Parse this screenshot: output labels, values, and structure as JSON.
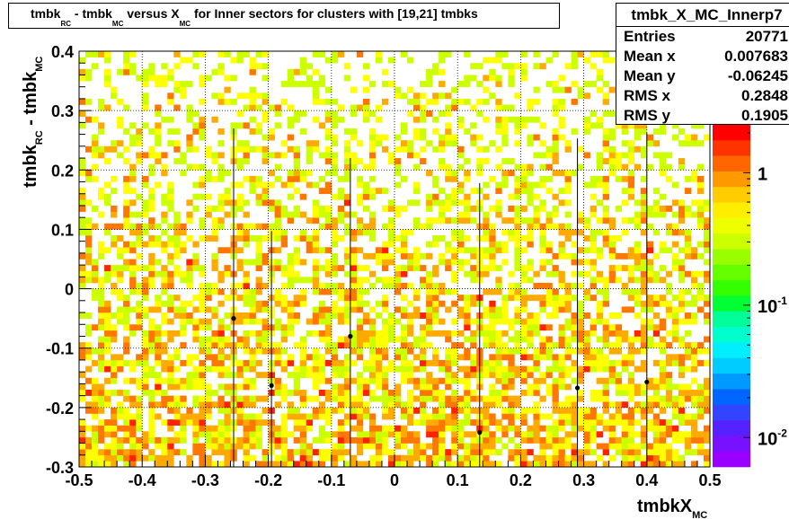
{
  "title": {
    "parts": [
      "tmbk",
      "RC",
      " - tmbk",
      "MC",
      " versus X",
      "MC",
      " for Inner sectors for clusters with [19,21] tmbks"
    ]
  },
  "stats": {
    "name": "tmbk_X_MC_Innerp7",
    "rows": [
      {
        "label": "Entries",
        "value": "20771"
      },
      {
        "label": "Mean x",
        "value": "0.007683"
      },
      {
        "label": "Mean y",
        "value": "-0.06245"
      },
      {
        "label": "RMS x",
        "value": "0.2848"
      },
      {
        "label": "RMS y",
        "value": "0.1905"
      }
    ]
  },
  "colors": {
    "yellow": "#ffff00",
    "yellow_green": "#ccff00",
    "orange": "#ffaa00",
    "dark_orange": "#ff7700",
    "red": "#ff2200",
    "palette_top": "#ff0000",
    "palette_bottom": "#9900ff"
  },
  "chart_data": {
    "type": "heatmap",
    "xlabel": "tmbkX",
    "xlabel_sub": "MC",
    "ylabel": "tmbk",
    "ylabel_sub1": "RC",
    "ylabel_mid": " - tmbk",
    "ylabel_sub2": "MC",
    "xlim": [
      -0.5,
      0.5
    ],
    "ylim": [
      -0.3,
      0.4
    ],
    "x_ticks": [
      "-0.5",
      "-0.4",
      "-0.3",
      "-0.2",
      "-0.1",
      "0",
      "0.1",
      "0.2",
      "0.3",
      "0.4",
      "0.5"
    ],
    "x_tick_values": [
      -0.5,
      -0.4,
      -0.3,
      -0.2,
      -0.1,
      0,
      0.1,
      0.2,
      0.3,
      0.4,
      0.5
    ],
    "y_ticks": [
      "-0.3",
      "-0.2",
      "-0.1",
      "0",
      "0.1",
      "0.2",
      "0.3",
      "0.4"
    ],
    "y_tick_values": [
      -0.3,
      -0.2,
      -0.1,
      0,
      0.1,
      0.2,
      0.3,
      0.4
    ],
    "grid": true,
    "colorbar": {
      "scale": "log",
      "labels": [
        {
          "base": "1",
          "exp": "",
          "value": 1
        },
        {
          "base": "10",
          "exp": "-1",
          "value": 0.1
        },
        {
          "base": "10",
          "exp": "-2",
          "value": 0.01
        }
      ]
    },
    "profile_points": [
      {
        "x": -0.255,
        "y": -0.05,
        "err": 0.32
      },
      {
        "x": -0.195,
        "y": -0.163,
        "err": 0.26
      },
      {
        "x": -0.07,
        "y": -0.08,
        "err": 0.3
      },
      {
        "x": 0.135,
        "y": -0.242,
        "err": 0.42
      },
      {
        "x": 0.29,
        "y": -0.167,
        "err": 0.42
      },
      {
        "x": 0.4,
        "y": -0.157,
        "err": 0.42
      }
    ],
    "density_profile": "occupancy and intensity increase toward negative y; sparse random bins near y=0.4"
  }
}
